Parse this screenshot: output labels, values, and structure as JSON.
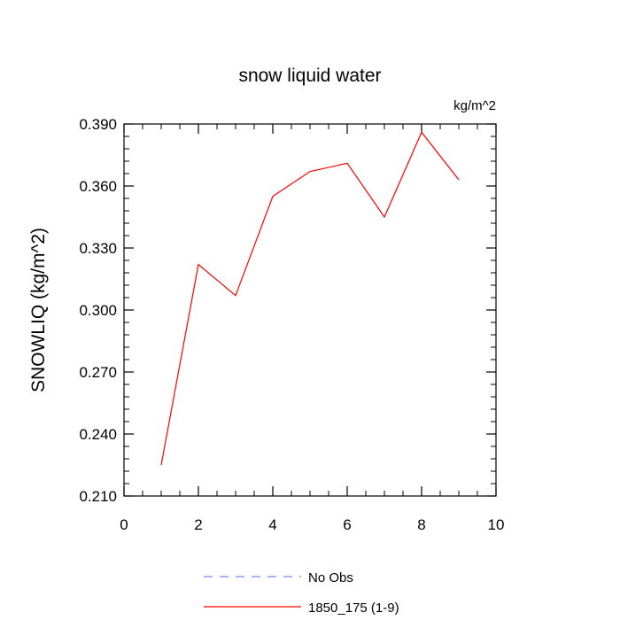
{
  "chart_data": {
    "type": "line",
    "title": "snow liquid water",
    "units_label": "kg/m^2",
    "ylabel": "SNOWLIQ  (kg/m^2)",
    "xlabel": "",
    "xlim": [
      0,
      10
    ],
    "ylim": [
      0.21,
      0.39
    ],
    "x_ticks": [
      0,
      2,
      4,
      6,
      8,
      10
    ],
    "x_tick_labels": [
      "0",
      "2",
      "4",
      "6",
      "8",
      "10"
    ],
    "x_minor_step": 0.5,
    "y_ticks": [
      0.21,
      0.24,
      0.27,
      0.3,
      0.33,
      0.36,
      0.39
    ],
    "y_tick_labels": [
      "0.210",
      "0.240",
      "0.270",
      "0.300",
      "0.330",
      "0.360",
      "0.390"
    ],
    "y_minor_step": 0.006,
    "grid": false,
    "legend_position": "bottom-center",
    "series": [
      {
        "name": "No Obs",
        "color": "#8080ff",
        "dashed": true,
        "x": [],
        "values": []
      },
      {
        "name": "1850_175 (1-9)",
        "color": "#ff0000",
        "dashed": false,
        "x": [
          1,
          2,
          3,
          4,
          5,
          6,
          7,
          8,
          9
        ],
        "values": [
          0.225,
          0.322,
          0.307,
          0.355,
          0.367,
          0.371,
          0.345,
          0.386,
          0.363
        ]
      }
    ]
  }
}
